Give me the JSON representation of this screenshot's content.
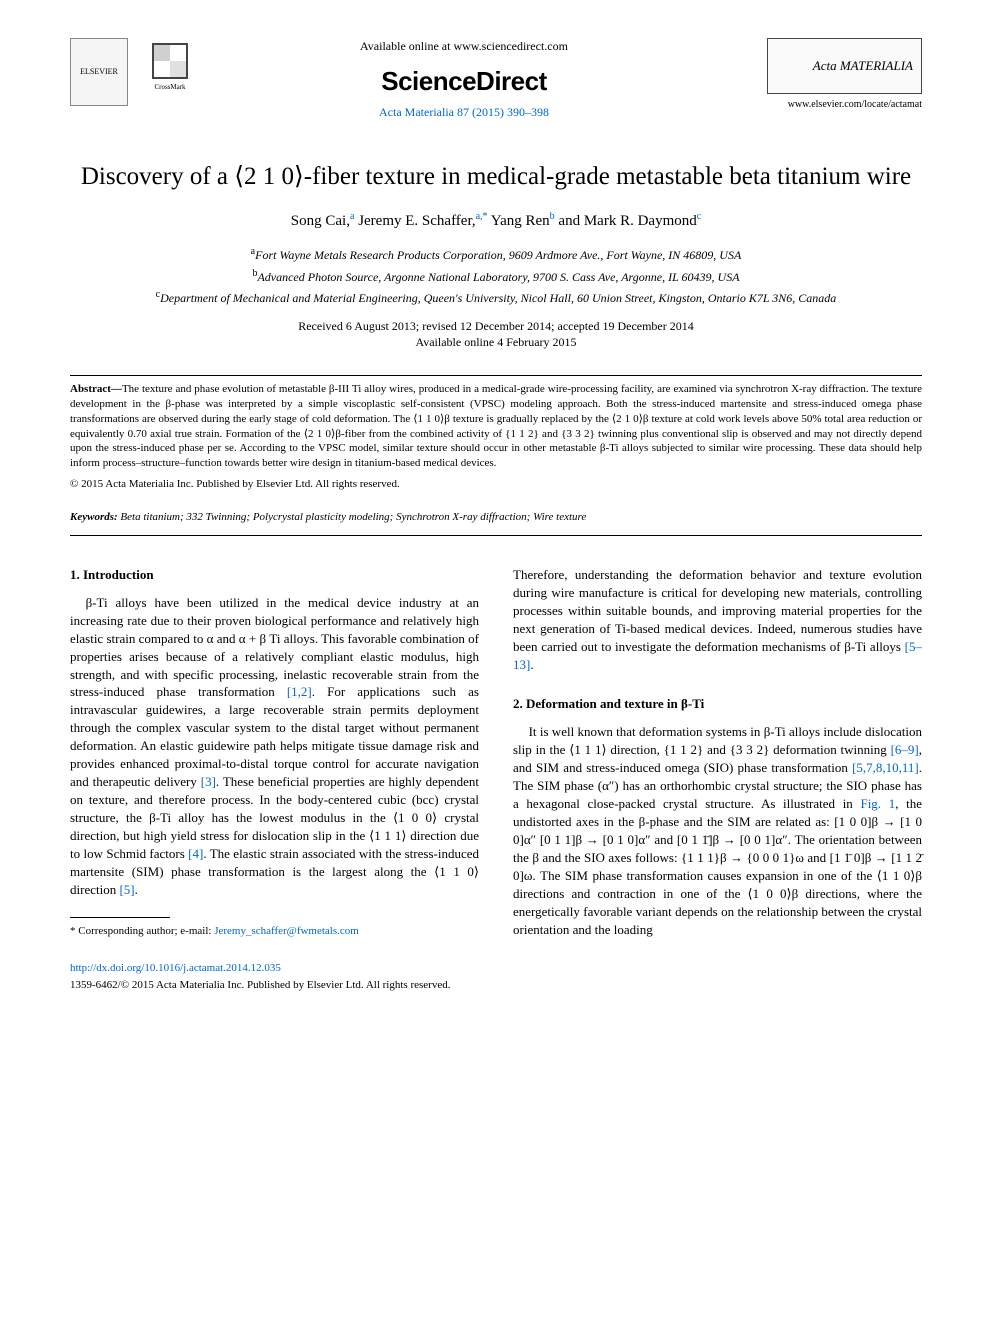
{
  "header": {
    "elsevier_label": "ELSEVIER",
    "crossmark_label": "CrossMark",
    "available_text": "Available online at www.sciencedirect.com",
    "sd_brand": "ScienceDirect",
    "journal_ref": "Acta Materialia 87 (2015) 390–398",
    "acta_brand": "Acta MATERIALIA",
    "acta_url": "www.elsevier.com/locate/actamat"
  },
  "article": {
    "title": "Discovery of a ⟨2 1 0⟩-fiber texture in medical-grade metastable beta titanium wire",
    "authors_html": "Song Cai,<sup>a</sup> Jeremy E. Schaffer,<sup>a,*</sup> Yang Ren<sup>b</sup> and Mark R. Daymond<sup>c</sup>",
    "affiliations": [
      "<sup>a</sup>Fort Wayne Metals Research Products Corporation, 9609 Ardmore Ave., Fort Wayne, IN 46809, USA",
      "<sup>b</sup>Advanced Photon Source, Argonne National Laboratory, 9700 S. Cass Ave, Argonne, IL 60439, USA",
      "<sup>c</sup>Department of Mechanical and Material Engineering, Queen's University, Nicol Hall, 60 Union Street, Kingston, Ontario K7L 3N6, Canada"
    ],
    "dates_line1": "Received 6 August 2013; revised 12 December 2014; accepted 19 December 2014",
    "dates_line2": "Available online 4 February 2015"
  },
  "abstract": {
    "label": "Abstract—",
    "text": "The texture and phase evolution of metastable β-III Ti alloy wires, produced in a medical-grade wire-processing facility, are examined via synchrotron X-ray diffraction. The texture development in the β-phase was interpreted by a simple viscoplastic self-consistent (VPSC) modeling approach. Both the stress-induced martensite and stress-induced omega phase transformations are observed during the early stage of cold deformation. The ⟨1 1 0⟩β texture is gradually replaced by the ⟨2 1 0⟩β texture at cold work levels above 50% total area reduction or equivalently 0.70 axial true strain. Formation of the ⟨2 1 0⟩β-fiber from the combined activity of {1 1 2} and {3 3 2} twinning plus conventional slip is observed and may not directly depend upon the stress-induced phase per se. According to the VPSC model, similar texture should occur in other metastable β-Ti alloys subjected to similar wire processing. These data should help inform process–structure–function towards better wire design in titanium-based medical devices.",
    "copyright": "© 2015 Acta Materialia Inc. Published by Elsevier Ltd. All rights reserved."
  },
  "keywords": {
    "label": "Keywords:",
    "text": " Beta titanium; 332 Twinning; Polycrystal plasticity modeling; Synchrotron X-ray diffraction; Wire texture"
  },
  "sections": {
    "s1_head": "1. Introduction",
    "s1_p1": "β-Ti alloys have been utilized in the medical device industry at an increasing rate due to their proven biological performance and relatively high elastic strain compared to α and α + β Ti alloys. This favorable combination of properties arises because of a relatively compliant elastic modulus, high strength, and with specific processing, inelastic recoverable strain from the stress-induced phase transformation ",
    "s1_ref1": "[1,2]",
    "s1_p2": ". For applications such as intravascular guidewires, a large recoverable strain permits deployment through the complex vascular system to the distal target without permanent deformation. An elastic guidewire path helps mitigate tissue damage risk and provides enhanced proximal-to-distal torque control for accurate navigation and therapeutic delivery ",
    "s1_ref2": "[3]",
    "s1_p3": ". These beneficial properties are highly dependent on texture, and therefore process. In the body-centered cubic (bcc) crystal structure, the β-Ti alloy has the lowest modulus in the ⟨1 0 0⟩ crystal direction, but high yield stress for dislocation slip in the ⟨1 1 1⟩ direction due to low Schmid factors ",
    "s1_ref3": "[4]",
    "s1_p4": ". The elastic strain associated with the stress-induced martensite (SIM) phase transformation is the largest along the ⟨1 1 0⟩ direction ",
    "s1_ref4": "[5]",
    "s1_p5": ".",
    "s1_col2_p1": "Therefore, understanding the deformation behavior and texture evolution during wire manufacture is critical for developing new materials, controlling processes within suitable bounds, and improving material properties for the next generation of Ti-based medical devices. Indeed, numerous studies have been carried out to investigate the deformation mechanisms of β-Ti alloys ",
    "s1_col2_ref1": "[5–13]",
    "s1_col2_p2": ".",
    "s2_head": "2. Deformation and texture in β-Ti",
    "s2_p1": "It is well known that deformation systems in β-Ti alloys include dislocation slip in the ⟨1 1 1⟩ direction, {1 1 2} and {3 3 2} deformation twinning ",
    "s2_ref1": "[6–9]",
    "s2_p2": ", and SIM and stress-induced omega (SIO) phase transformation ",
    "s2_ref2": "[5,7,8,10,11]",
    "s2_p3": ". The SIM phase (α″) has an orthorhombic crystal structure; the SIO phase has a hexagonal close-packed crystal structure. As illustrated in ",
    "s2_fig": "Fig. 1",
    "s2_p4": ", the undistorted axes in the β-phase and the SIM are related as: [1 0 0]β → [1 0 0]α″ [0 1 1]β → [0 1 0]α″ and [0 1 1̄]β → [0 0 1]α″. The orientation between the β and the SIO axes follows: {1 1 1}β → {0 0 0 1}ω and [1 1̄ 0]β → [1 1 2̄ 0]ω. The SIM phase transformation causes expansion in one of the ⟨1 1 0⟩β directions and contraction in one of the ⟨1 0 0⟩β directions, where the energetically favorable variant depends on the relationship between the crystal orientation and the loading"
  },
  "footnote": {
    "label": "* Corresponding author; e-mail: ",
    "email": "Jeremy_schaffer@fwmetals.com"
  },
  "footer": {
    "doi": "http://dx.doi.org/10.1016/j.actamat.2014.12.035",
    "copy": "1359-6462/© 2015 Acta Materialia Inc. Published by Elsevier Ltd. All rights reserved."
  },
  "colors": {
    "link": "#0066cc",
    "text": "#000000",
    "background": "#ffffff"
  }
}
